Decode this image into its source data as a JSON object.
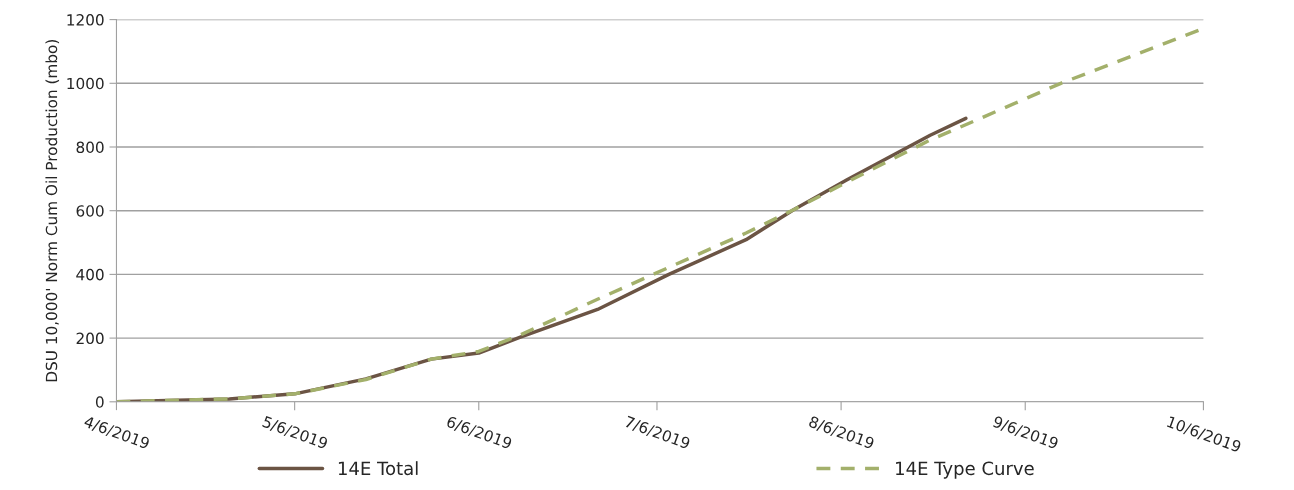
{
  "chart_data": {
    "type": "line",
    "ylabel": "DSU 10,000' Norm Cum Oil Production (mbo)",
    "series": [
      {
        "name": "14E Total",
        "color": "#6b5444",
        "line_style": "solid",
        "x": [
          "2019-04-06",
          "2019-04-25",
          "2019-05-06",
          "2019-05-18",
          "2019-05-29",
          "2019-06-06",
          "2019-06-13",
          "2019-06-26",
          "2019-07-08",
          "2019-07-21",
          "2019-07-29",
          "2019-08-07",
          "2019-08-21",
          "2019-08-27"
        ],
        "values": [
          0,
          9,
          25,
          72,
          134,
          153,
          203,
          290,
          400,
          509,
          603,
          697,
          837,
          890
        ]
      },
      {
        "name": "14E Type Curve",
        "color": "#a3b06b",
        "line_style": "dashed",
        "x": [
          "2019-04-06",
          "2019-04-25",
          "2019-05-06",
          "2019-05-18",
          "2019-05-29",
          "2019-06-06",
          "2019-06-13",
          "2019-06-26",
          "2019-07-08",
          "2019-07-21",
          "2019-07-29",
          "2019-08-07",
          "2019-08-21",
          "2019-08-26",
          "2019-09-12",
          "2019-10-06"
        ],
        "values": [
          0,
          9,
          25,
          70,
          134,
          158,
          210,
          322,
          422,
          530,
          603,
          690,
          822,
          862,
          1000,
          1172
        ]
      }
    ],
    "xlim": [
      "2019-04-06",
      "2019-10-06"
    ],
    "xticks": [
      {
        "value": "2019-04-06",
        "label": "4/6/2019"
      },
      {
        "value": "2019-05-06",
        "label": "5/6/2019"
      },
      {
        "value": "2019-06-06",
        "label": "6/6/2019"
      },
      {
        "value": "2019-07-06",
        "label": "7/6/2019"
      },
      {
        "value": "2019-08-06",
        "label": "8/6/2019"
      },
      {
        "value": "2019-09-06",
        "label": "9/6/2019"
      },
      {
        "value": "2019-10-06",
        "label": "10/6/2019"
      }
    ],
    "ylim": [
      0,
      1200
    ],
    "yticks": [
      0,
      200,
      400,
      600,
      800,
      1000,
      1200
    ],
    "grid": "y",
    "legend": "bottom",
    "marker": "none"
  }
}
